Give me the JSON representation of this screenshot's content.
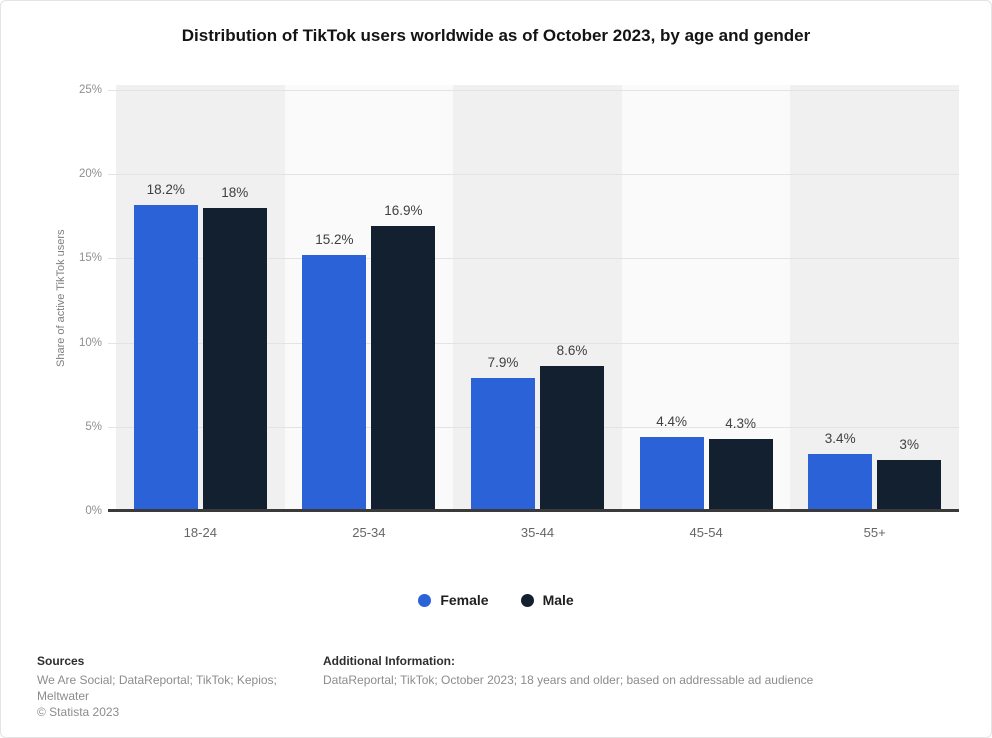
{
  "chart_data": {
    "type": "bar",
    "title": "Distribution of TikTok users worldwide as of October 2023, by age and gender",
    "categories": [
      "18-24",
      "25-34",
      "35-44",
      "45-54",
      "55+"
    ],
    "series": [
      {
        "name": "Female",
        "color": "#2b62d8",
        "values": [
          18.2,
          15.2,
          7.9,
          4.4,
          3.4
        ],
        "labels": [
          "18.2%",
          "15.2%",
          "7.9%",
          "4.4%",
          "3.4%"
        ]
      },
      {
        "name": "Male",
        "color": "#132030",
        "values": [
          18,
          16.9,
          8.6,
          4.3,
          3
        ],
        "labels": [
          "18%",
          "16.9%",
          "8.6%",
          "4.3%",
          "3%"
        ]
      }
    ],
    "xlabel": "",
    "ylabel": "Share of active TikTok users",
    "ylim": [
      0,
      25
    ],
    "yticks": [
      {
        "value": 0,
        "label": "0%"
      },
      {
        "value": 5,
        "label": "5%"
      },
      {
        "value": 10,
        "label": "10%"
      },
      {
        "value": 15,
        "label": "15%"
      },
      {
        "value": 20,
        "label": "20%"
      },
      {
        "value": 25,
        "label": "25%"
      }
    ],
    "grid": true,
    "legend_position": "bottom",
    "band_colors": [
      "#f0f0f1",
      "#fafafa"
    ],
    "gridline_color": "#e3e3e3",
    "baseline_color": "#3a3a3a"
  },
  "footer": {
    "sources_heading": "Sources",
    "sources_text": "We Are Social; DataReportal; TikTok; Kepios; Meltwater",
    "copyright": "© Statista 2023",
    "additional_heading": "Additional Information:",
    "additional_text": "DataReportal; TikTok; October 2023; 18 years and older; based on addressable ad audience"
  }
}
